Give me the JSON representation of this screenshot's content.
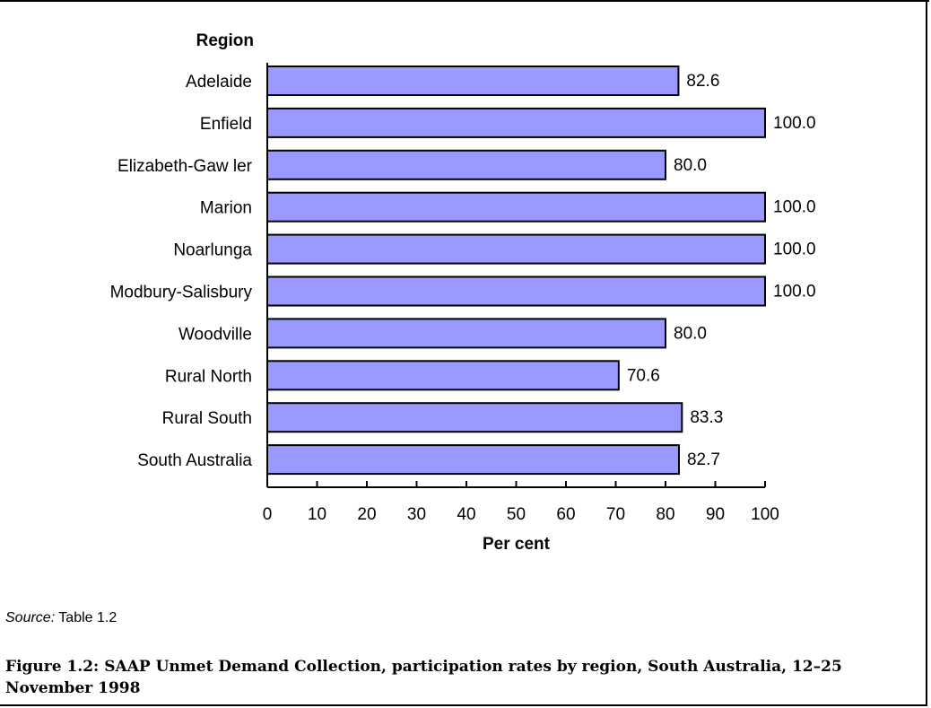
{
  "chart_data": {
    "type": "bar",
    "orientation": "horizontal",
    "categories": [
      "Adelaide",
      "Enfield",
      "Elizabeth-Gaw ler",
      "Marion",
      "Noarlunga",
      "Modbury-Salisbury",
      "Woodville",
      "Rural North",
      "Rural South",
      "South Australia"
    ],
    "values": [
      82.6,
      100.0,
      80.0,
      100.0,
      100.0,
      100.0,
      80.0,
      70.6,
      83.3,
      82.7
    ],
    "data_labels": [
      "82.6",
      "100.0",
      "80.0",
      "100.0",
      "100.0",
      "100.0",
      "80.0",
      "70.6",
      "83.3",
      "82.7"
    ],
    "ylabel": "Region",
    "xlabel": "Per cent",
    "xlim": [
      0,
      100
    ],
    "xticks": [
      "0",
      "10",
      "20",
      "30",
      "40",
      "50",
      "60",
      "70",
      "80",
      "90",
      "100"
    ],
    "grid": false,
    "legend": "none",
    "bar_color": "#9999ff",
    "bar_edge_color": "#000000"
  },
  "source": {
    "label": "Source:",
    "text": " Table 1.2"
  },
  "caption": "Figure 1.2: SAAP Unmet Demand Collection, participation rates by region, South Australia, 12–25 November 1998"
}
